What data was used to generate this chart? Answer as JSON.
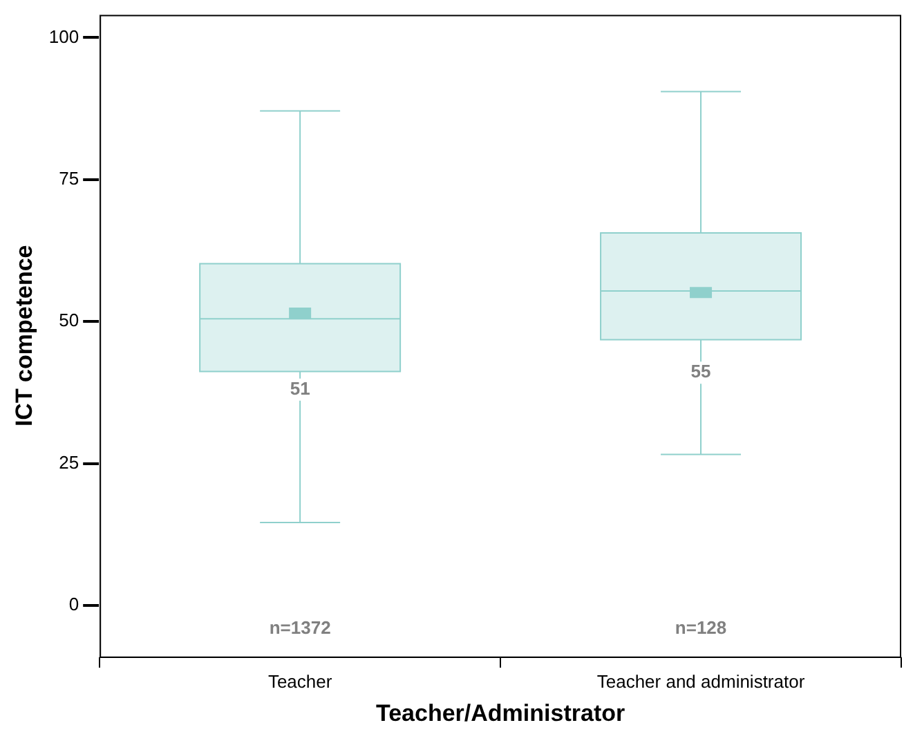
{
  "chart_data": {
    "type": "box",
    "xlabel": "Teacher/Administrator",
    "ylabel": "ICT competence",
    "categories": [
      "Teacher",
      "Teacher and administrator"
    ],
    "color": "#8fd0cc",
    "boxes": [
      {
        "low": 14.6,
        "q1": 41.2,
        "median": 50.5,
        "q3": 60.2,
        "high": 87.1,
        "mean": 51.5
      },
      {
        "low": 26.6,
        "q1": 46.8,
        "median": 55.4,
        "q3": 65.6,
        "high": 90.5,
        "mean": 55.1
      }
    ],
    "ylim": [
      -9,
      104
    ],
    "yticks": [
      0,
      25,
      50,
      75,
      100
    ],
    "grid": false,
    "annotations": [
      {
        "text": "51",
        "x": "Teacher",
        "y": 38
      },
      {
        "text": "55",
        "x": "Teacher and administrator",
        "y": 41
      },
      "n=1372",
      "n=128"
    ]
  }
}
